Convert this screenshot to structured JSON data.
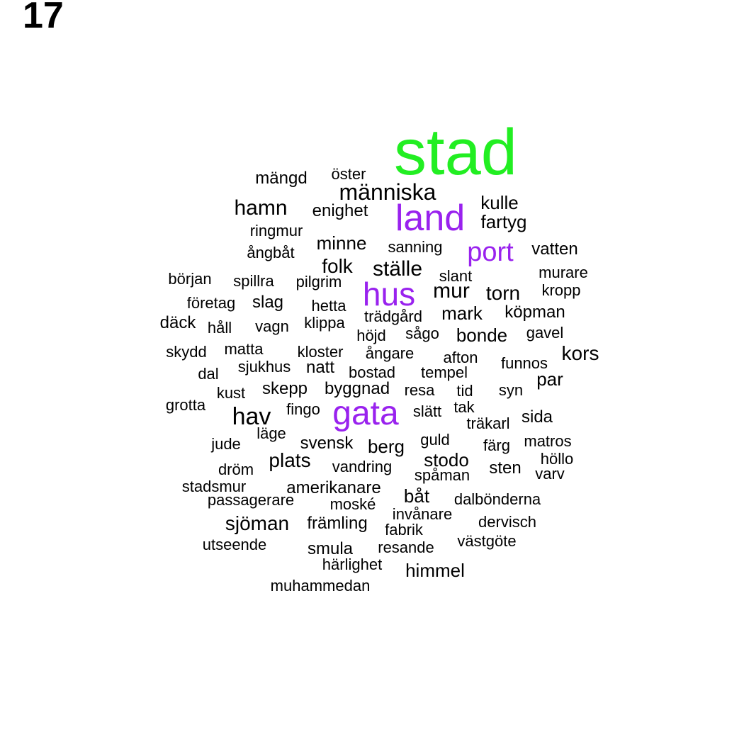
{
  "panel_number": "17",
  "colors": {
    "highest": "#22ee22",
    "high": "#9922ee",
    "normal": "#000000"
  },
  "words": [
    {
      "text": "stad",
      "tier": "highest"
    },
    {
      "text": "land",
      "tier": "high"
    },
    {
      "text": "hus",
      "tier": "high"
    },
    {
      "text": "gata",
      "tier": "high"
    },
    {
      "text": "port",
      "tier": "high"
    },
    {
      "text": "människa",
      "tier": "normal"
    },
    {
      "text": "hav",
      "tier": "normal"
    },
    {
      "text": "ställe",
      "tier": "normal"
    },
    {
      "text": "mur",
      "tier": "normal"
    },
    {
      "text": "hamn",
      "tier": "normal"
    },
    {
      "text": "folk",
      "tier": "normal"
    },
    {
      "text": "torn",
      "tier": "normal"
    },
    {
      "text": "kors",
      "tier": "normal"
    },
    {
      "text": "plats",
      "tier": "normal"
    },
    {
      "text": "sjöman",
      "tier": "normal"
    },
    {
      "text": "mark",
      "tier": "normal"
    },
    {
      "text": "bonde",
      "tier": "normal"
    },
    {
      "text": "berg",
      "tier": "normal"
    },
    {
      "text": "stodo",
      "tier": "normal"
    },
    {
      "text": "himmel",
      "tier": "normal"
    },
    {
      "text": "båt",
      "tier": "normal"
    },
    {
      "text": "par",
      "tier": "normal"
    },
    {
      "text": "kulle",
      "tier": "normal"
    },
    {
      "text": "fartyg",
      "tier": "normal"
    },
    {
      "text": "minne",
      "tier": "normal"
    },
    {
      "text": "köpman",
      "tier": "normal"
    },
    {
      "text": "amerikanare",
      "tier": "normal"
    },
    {
      "text": "främling",
      "tier": "normal"
    },
    {
      "text": "sida",
      "tier": "normal"
    },
    {
      "text": "sten",
      "tier": "normal"
    },
    {
      "text": "skepp",
      "tier": "normal"
    },
    {
      "text": "byggnad",
      "tier": "normal"
    },
    {
      "text": "svensk",
      "tier": "normal"
    },
    {
      "text": "däck",
      "tier": "normal"
    },
    {
      "text": "slag",
      "tier": "normal"
    },
    {
      "text": "natt",
      "tier": "normal"
    },
    {
      "text": "mängd",
      "tier": "normal"
    },
    {
      "text": "enighet",
      "tier": "normal"
    },
    {
      "text": "vatten",
      "tier": "normal"
    },
    {
      "text": "murare",
      "tier": "normal"
    },
    {
      "text": "ångare",
      "tier": "normal"
    },
    {
      "text": "resa",
      "tier": "normal"
    },
    {
      "text": "höjd",
      "tier": "normal"
    },
    {
      "text": "sågo",
      "tier": "normal"
    },
    {
      "text": "matros",
      "tier": "normal"
    },
    {
      "text": "smula",
      "tier": "normal"
    },
    {
      "text": "öster",
      "tier": "normal"
    },
    {
      "text": "ringmur",
      "tier": "normal"
    },
    {
      "text": "sanning",
      "tier": "normal"
    },
    {
      "text": "ångbåt",
      "tier": "normal"
    },
    {
      "text": "början",
      "tier": "normal"
    },
    {
      "text": "spillra",
      "tier": "normal"
    },
    {
      "text": "pilgrim",
      "tier": "normal"
    },
    {
      "text": "slant",
      "tier": "normal"
    },
    {
      "text": "kropp",
      "tier": "normal"
    },
    {
      "text": "företag",
      "tier": "normal"
    },
    {
      "text": "hetta",
      "tier": "normal"
    },
    {
      "text": "trädgård",
      "tier": "normal"
    },
    {
      "text": "håll",
      "tier": "normal"
    },
    {
      "text": "vagn",
      "tier": "normal"
    },
    {
      "text": "klippa",
      "tier": "normal"
    },
    {
      "text": "gavel",
      "tier": "normal"
    },
    {
      "text": "skydd",
      "tier": "normal"
    },
    {
      "text": "matta",
      "tier": "normal"
    },
    {
      "text": "kloster",
      "tier": "normal"
    },
    {
      "text": "afton",
      "tier": "normal"
    },
    {
      "text": "funnos",
      "tier": "normal"
    },
    {
      "text": "dal",
      "tier": "normal"
    },
    {
      "text": "sjukhus",
      "tier": "normal"
    },
    {
      "text": "bostad",
      "tier": "normal"
    },
    {
      "text": "tempel",
      "tier": "normal"
    },
    {
      "text": "kust",
      "tier": "normal"
    },
    {
      "text": "tid",
      "tier": "normal"
    },
    {
      "text": "syn",
      "tier": "normal"
    },
    {
      "text": "grotta",
      "tier": "normal"
    },
    {
      "text": "fingo",
      "tier": "normal"
    },
    {
      "text": "slätt",
      "tier": "normal"
    },
    {
      "text": "tak",
      "tier": "normal"
    },
    {
      "text": "träkarl",
      "tier": "normal"
    },
    {
      "text": "läge",
      "tier": "normal"
    },
    {
      "text": "jude",
      "tier": "normal"
    },
    {
      "text": "guld",
      "tier": "normal"
    },
    {
      "text": "färg",
      "tier": "normal"
    },
    {
      "text": "höllo",
      "tier": "normal"
    },
    {
      "text": "dröm",
      "tier": "normal"
    },
    {
      "text": "vandring",
      "tier": "normal"
    },
    {
      "text": "spåman",
      "tier": "normal"
    },
    {
      "text": "varv",
      "tier": "normal"
    },
    {
      "text": "stadsmur",
      "tier": "normal"
    },
    {
      "text": "passagerare",
      "tier": "normal"
    },
    {
      "text": "moské",
      "tier": "normal"
    },
    {
      "text": "dalbönderna",
      "tier": "normal"
    },
    {
      "text": "invånare",
      "tier": "normal"
    },
    {
      "text": "dervisch",
      "tier": "normal"
    },
    {
      "text": "fabrik",
      "tier": "normal"
    },
    {
      "text": "utseende",
      "tier": "normal"
    },
    {
      "text": "resande",
      "tier": "normal"
    },
    {
      "text": "västgöte",
      "tier": "normal"
    },
    {
      "text": "härlighet",
      "tier": "normal"
    },
    {
      "text": "muhammedan",
      "tier": "normal"
    }
  ]
}
